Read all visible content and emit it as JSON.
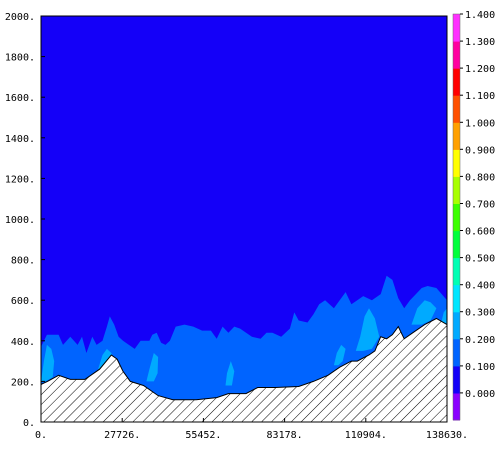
{
  "chart_data": {
    "type": "heatmap",
    "title": "",
    "xlabel": "",
    "ylabel": "",
    "xlim": [
      0,
      138630
    ],
    "ylim": [
      0,
      2000
    ],
    "x_ticks": [
      0,
      27726,
      55452,
      83178,
      110904,
      138630
    ],
    "x_tick_labels": [
      "0.",
      "27726.",
      "55452.",
      "83178.",
      "110904.",
      "138630."
    ],
    "y_ticks": [
      0,
      200,
      400,
      600,
      800,
      1000,
      1200,
      1400,
      1600,
      1800,
      2000
    ],
    "y_tick_labels": [
      "0.",
      "200.",
      "400.",
      "600.",
      "800.",
      "1000.",
      "1200.",
      "1400.",
      "1600.",
      "1800.",
      "2000."
    ],
    "grid": false,
    "background_level_color": "#1400f8",
    "colorbar": {
      "labels": [
        "0.000",
        "0.100",
        "0.200",
        "0.300",
        "0.400",
        "0.500",
        "0.600",
        "0.700",
        "0.800",
        "0.900",
        "1.000",
        "1.100",
        "1.200",
        "1.300",
        "1.400"
      ],
      "colors": [
        "#8a00ff",
        "#1400f8",
        "#0064ff",
        "#00aaff",
        "#00e6ff",
        "#00ffb4",
        "#00ff3c",
        "#3cff00",
        "#a8ff00",
        "#ffff00",
        "#ffa000",
        "#ff5000",
        "#ff0000",
        "#ff00a0",
        "#ff30ff"
      ]
    },
    "terrain": [
      [
        0,
        185
      ],
      [
        2200,
        200
      ],
      [
        6000,
        230
      ],
      [
        10000,
        210
      ],
      [
        15000,
        210
      ],
      [
        20000,
        260
      ],
      [
        24000,
        330
      ],
      [
        26000,
        310
      ],
      [
        28000,
        250
      ],
      [
        30500,
        200
      ],
      [
        35000,
        180
      ],
      [
        40000,
        130
      ],
      [
        45000,
        110
      ],
      [
        53000,
        110
      ],
      [
        60000,
        120
      ],
      [
        64000,
        140
      ],
      [
        70000,
        140
      ],
      [
        74000,
        170
      ],
      [
        80000,
        170
      ],
      [
        88000,
        175
      ],
      [
        93000,
        200
      ],
      [
        98000,
        230
      ],
      [
        102000,
        270
      ],
      [
        106000,
        300
      ],
      [
        108000,
        300
      ],
      [
        112000,
        330
      ],
      [
        114000,
        350
      ],
      [
        116000,
        420
      ],
      [
        118000,
        410
      ],
      [
        120000,
        430
      ],
      [
        122000,
        470
      ],
      [
        124000,
        410
      ],
      [
        127000,
        440
      ],
      [
        131000,
        480
      ],
      [
        135000,
        510
      ],
      [
        138630,
        480
      ]
    ],
    "level_0_200_region": [
      [
        0,
        370
      ],
      [
        2000,
        430
      ],
      [
        6000,
        430
      ],
      [
        7500,
        380
      ],
      [
        10000,
        420
      ],
      [
        12500,
        380
      ],
      [
        14000,
        420
      ],
      [
        15500,
        340
      ],
      [
        17500,
        420
      ],
      [
        19000,
        380
      ],
      [
        21000,
        400
      ],
      [
        22500,
        470
      ],
      [
        23500,
        520
      ],
      [
        25000,
        480
      ],
      [
        26500,
        420
      ],
      [
        28000,
        400
      ],
      [
        30000,
        380
      ],
      [
        32000,
        360
      ],
      [
        34000,
        400
      ],
      [
        37000,
        400
      ],
      [
        38000,
        430
      ],
      [
        39500,
        440
      ],
      [
        41000,
        390
      ],
      [
        42500,
        380
      ],
      [
        44000,
        400
      ],
      [
        46000,
        470
      ],
      [
        49000,
        480
      ],
      [
        52000,
        470
      ],
      [
        55000,
        450
      ],
      [
        58000,
        450
      ],
      [
        60000,
        410
      ],
      [
        62000,
        470
      ],
      [
        64000,
        440
      ],
      [
        66000,
        470
      ],
      [
        68000,
        460
      ],
      [
        72000,
        420
      ],
      [
        75000,
        410
      ],
      [
        77000,
        440
      ],
      [
        79000,
        440
      ],
      [
        82000,
        420
      ],
      [
        85000,
        460
      ],
      [
        86500,
        540
      ],
      [
        88000,
        500
      ],
      [
        91000,
        490
      ],
      [
        93000,
        530
      ],
      [
        95000,
        580
      ],
      [
        97000,
        600
      ],
      [
        100000,
        560
      ],
      [
        102000,
        600
      ],
      [
        104000,
        640
      ],
      [
        106000,
        580
      ],
      [
        108000,
        600
      ],
      [
        110000,
        620
      ],
      [
        113000,
        600
      ],
      [
        116000,
        630
      ],
      [
        118000,
        720
      ],
      [
        120000,
        700
      ],
      [
        122000,
        610
      ],
      [
        124000,
        560
      ],
      [
        126000,
        600
      ],
      [
        128000,
        630
      ],
      [
        130000,
        660
      ],
      [
        132000,
        670
      ],
      [
        135000,
        660
      ],
      [
        138630,
        600
      ],
      [
        138630,
        0
      ],
      [
        0,
        0
      ]
    ],
    "level_0_300_patches": [
      [
        [
          0,
          200
        ],
        [
          1000,
          300
        ],
        [
          2000,
          380
        ],
        [
          3500,
          360
        ],
        [
          4500,
          300
        ],
        [
          4000,
          220
        ],
        [
          1500,
          200
        ]
      ],
      [
        [
          19500,
          260
        ],
        [
          21000,
          330
        ],
        [
          22500,
          360
        ],
        [
          24000,
          340
        ],
        [
          25000,
          300
        ],
        [
          22000,
          260
        ]
      ],
      [
        [
          36000,
          200
        ],
        [
          37000,
          260
        ],
        [
          38500,
          340
        ],
        [
          40000,
          320
        ],
        [
          39800,
          240
        ],
        [
          38500,
          200
        ]
      ],
      [
        [
          63000,
          180
        ],
        [
          63500,
          240
        ],
        [
          64800,
          300
        ],
        [
          66000,
          250
        ],
        [
          65200,
          180
        ]
      ],
      [
        [
          100000,
          280
        ],
        [
          101000,
          340
        ],
        [
          102500,
          380
        ],
        [
          104000,
          360
        ],
        [
          103000,
          300
        ],
        [
          101500,
          280
        ]
      ],
      [
        [
          107500,
          350
        ],
        [
          109000,
          420
        ],
        [
          110500,
          520
        ],
        [
          112000,
          560
        ],
        [
          114000,
          510
        ],
        [
          115500,
          420
        ],
        [
          113000,
          360
        ],
        [
          110000,
          350
        ]
      ],
      [
        [
          126500,
          480
        ],
        [
          128500,
          560
        ],
        [
          131000,
          600
        ],
        [
          133000,
          590
        ],
        [
          135000,
          560
        ],
        [
          133000,
          500
        ],
        [
          130000,
          480
        ]
      ],
      [
        [
          136500,
          480
        ],
        [
          137500,
          540
        ],
        [
          138630,
          560
        ],
        [
          138630,
          480
        ]
      ]
    ]
  }
}
